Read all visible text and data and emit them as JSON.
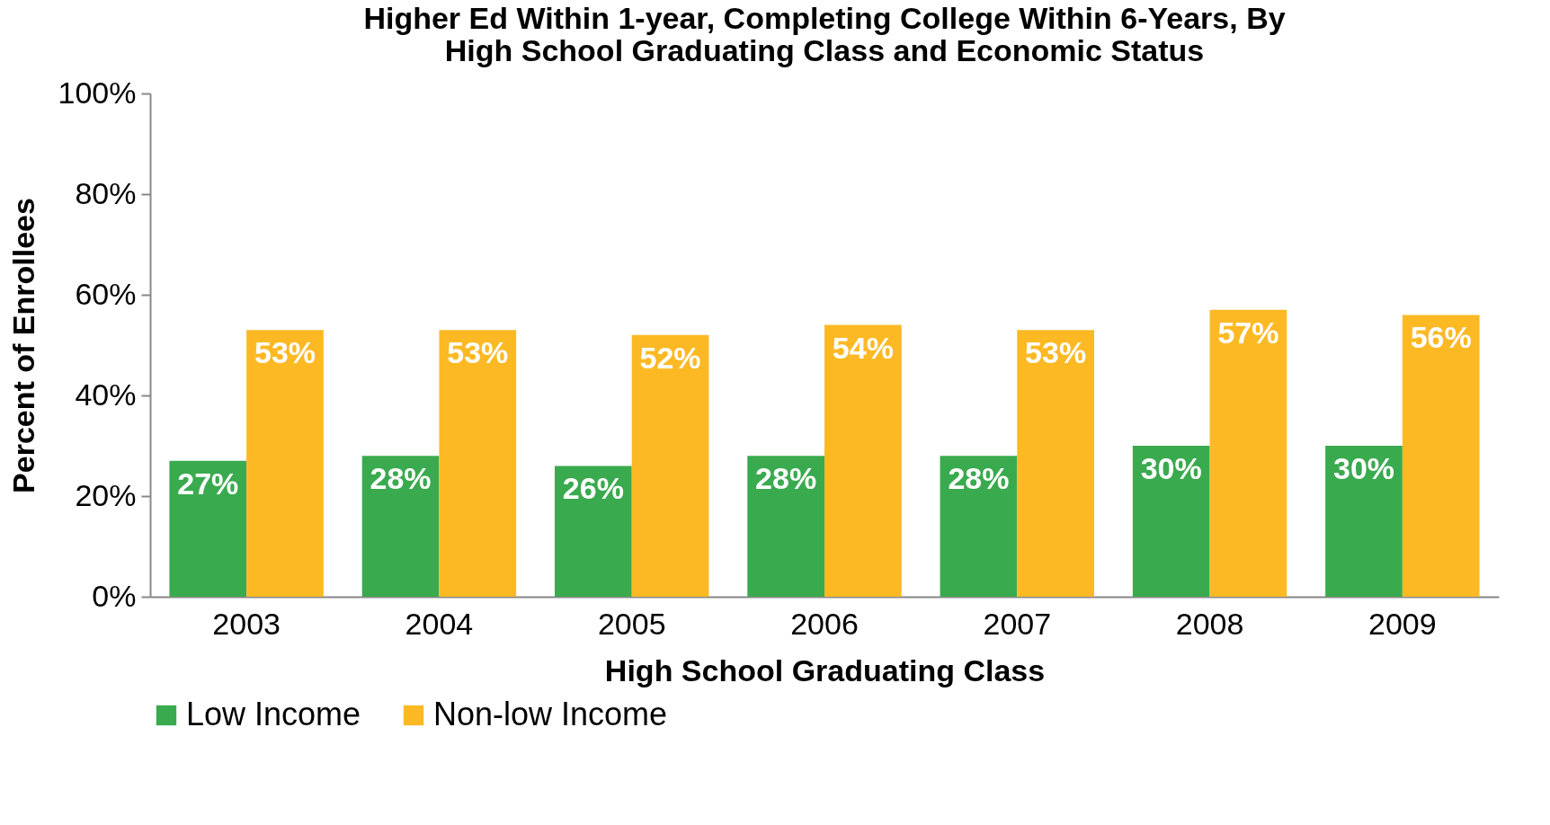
{
  "chart_data": {
    "type": "bar",
    "title": "Higher Ed Within 1-year, Completing College Within 6-Years, By High School Graduating Class and Economic Status",
    "xlabel": "High School Graduating Class",
    "ylabel": "Percent of Enrollees",
    "categories": [
      "2003",
      "2004",
      "2005",
      "2006",
      "2007",
      "2008",
      "2009"
    ],
    "series": [
      {
        "name": "Low Income",
        "color": "#3aaa4f",
        "values": [
          27,
          28,
          26,
          28,
          28,
          30,
          30
        ],
        "value_labels": [
          "27%",
          "28%",
          "26%",
          "28%",
          "28%",
          "30%",
          "30%"
        ]
      },
      {
        "name": "Non-low Income",
        "color": "#fdb924",
        "values": [
          53,
          53,
          52,
          54,
          53,
          57,
          56
        ],
        "value_labels": [
          "53%",
          "53%",
          "52%",
          "54%",
          "53%",
          "57%",
          "56%"
        ]
      }
    ],
    "ylim": [
      0,
      100
    ],
    "yticks": [
      {
        "value": 0,
        "label": "0%"
      },
      {
        "value": 20,
        "label": "20%"
      },
      {
        "value": 40,
        "label": "40%"
      },
      {
        "value": 60,
        "label": "60%"
      },
      {
        "value": 80,
        "label": "80%"
      },
      {
        "value": 100,
        "label": "100%"
      }
    ],
    "grid": false,
    "legend": "bottom"
  }
}
